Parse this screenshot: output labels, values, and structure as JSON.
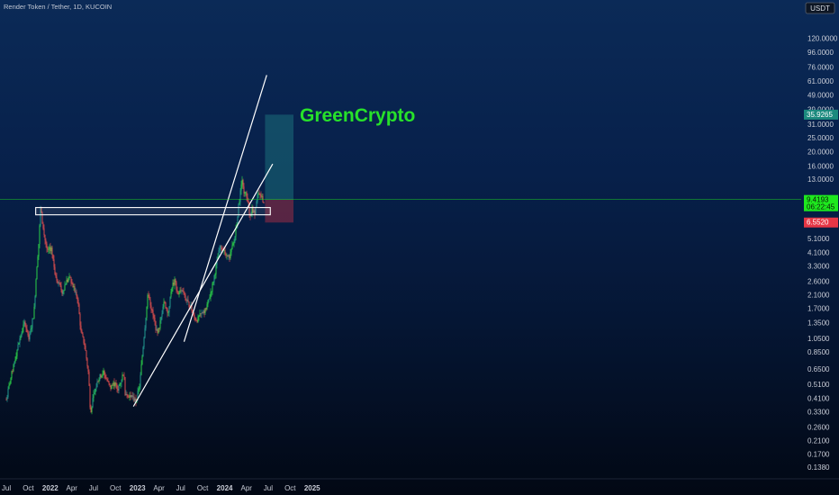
{
  "chart_data": {
    "type": "candlestick",
    "title": "Render Token / Tether, 1D, KUCOIN",
    "currency": "USDT",
    "watermark": "GreenCrypto",
    "y_scale": "log",
    "ylim": [
      0.12,
      165
    ],
    "y_ticks": [
      "120.0000",
      "96.0000",
      "76.0000",
      "61.0000",
      "49.0000",
      "39.0000",
      "31.0000",
      "25.0000",
      "20.0000",
      "16.0000",
      "13.0000",
      "9.4396",
      "5.1000",
      "4.1000",
      "3.3000",
      "2.6000",
      "2.1000",
      "1.7000",
      "1.3500",
      "1.0500",
      "0.8500",
      "0.6500",
      "0.5100",
      "0.4100",
      "0.3300",
      "0.2600",
      "0.2100",
      "0.1700",
      "0.1380"
    ],
    "x_ticks": [
      "Jul",
      "Oct",
      "2022",
      "Apr",
      "Jul",
      "Oct",
      "2023",
      "Apr",
      "Jul",
      "Oct",
      "2024",
      "Apr",
      "Jul",
      "Oct",
      "2025"
    ],
    "bold_x_ticks": [
      "2022",
      "2023",
      "2024",
      "2025"
    ],
    "price_labels": {
      "target": "35.9265",
      "current": "9.4193",
      "countdown": "06:22:45",
      "high_marker": "9.4396",
      "stop": "6.5520"
    },
    "colors": {
      "up": "#26a69a",
      "up_bright": "#2ee34a",
      "down": "#ef5350",
      "profit_zone": "#1f7f86",
      "loss_zone": "#7a2a45",
      "current_price": "#1ee81e",
      "trendline": "#ffffff"
    },
    "price_path": [
      [
        "2021-07-01",
        0.4
      ],
      [
        "2021-07-25",
        0.62
      ],
      [
        "2021-08-20",
        0.95
      ],
      [
        "2021-09-15",
        1.35
      ],
      [
        "2021-10-05",
        1.05
      ],
      [
        "2021-10-25",
        1.6
      ],
      [
        "2021-11-05",
        3.2
      ],
      [
        "2021-11-15",
        5.0
      ],
      [
        "2021-11-21",
        8.3
      ],
      [
        "2021-12-05",
        5.5
      ],
      [
        "2021-12-20",
        4.1
      ],
      [
        "2022-01-05",
        4.4
      ],
      [
        "2022-01-20",
        3.0
      ],
      [
        "2022-02-05",
        2.5
      ],
      [
        "2022-02-20",
        2.2
      ],
      [
        "2022-03-10",
        2.6
      ],
      [
        "2022-03-25",
        2.7
      ],
      [
        "2022-04-10",
        2.3
      ],
      [
        "2022-04-25",
        2.0
      ],
      [
        "2022-05-10",
        1.15
      ],
      [
        "2022-05-25",
        0.95
      ],
      [
        "2022-06-10",
        0.6
      ],
      [
        "2022-06-18",
        0.33
      ],
      [
        "2022-07-01",
        0.42
      ],
      [
        "2022-07-20",
        0.55
      ],
      [
        "2022-08-10",
        0.62
      ],
      [
        "2022-08-25",
        0.55
      ],
      [
        "2022-09-10",
        0.48
      ],
      [
        "2022-09-25",
        0.52
      ],
      [
        "2022-10-10",
        0.47
      ],
      [
        "2022-10-25",
        0.55
      ],
      [
        "2022-11-05",
        0.62
      ],
      [
        "2022-11-10",
        0.45
      ],
      [
        "2022-11-25",
        0.43
      ],
      [
        "2022-12-10",
        0.42
      ],
      [
        "2022-12-25",
        0.39
      ],
      [
        "2023-01-10",
        0.5
      ],
      [
        "2023-01-25",
        0.95
      ],
      [
        "2023-02-05",
        1.5
      ],
      [
        "2023-02-15",
        2.2
      ],
      [
        "2023-03-01",
        1.65
      ],
      [
        "2023-03-15",
        1.35
      ],
      [
        "2023-03-25",
        1.1
      ],
      [
        "2023-04-10",
        1.45
      ],
      [
        "2023-04-20",
        1.9
      ],
      [
        "2023-05-10",
        1.6
      ],
      [
        "2023-05-25",
        2.4
      ],
      [
        "2023-06-05",
        2.6
      ],
      [
        "2023-06-20",
        2.15
      ],
      [
        "2023-07-05",
        2.25
      ],
      [
        "2023-07-25",
        1.9
      ],
      [
        "2023-08-15",
        1.7
      ],
      [
        "2023-08-25",
        1.45
      ],
      [
        "2023-09-10",
        1.42
      ],
      [
        "2023-09-25",
        1.55
      ],
      [
        "2023-10-10",
        1.6
      ],
      [
        "2023-10-25",
        1.9
      ],
      [
        "2023-11-10",
        2.4
      ],
      [
        "2023-11-25",
        3.2
      ],
      [
        "2023-12-10",
        4.3
      ],
      [
        "2023-12-25",
        4.5
      ],
      [
        "2024-01-05",
        3.8
      ],
      [
        "2024-01-15",
        3.7
      ],
      [
        "2024-01-25",
        4.0
      ],
      [
        "2024-02-10",
        4.9
      ],
      [
        "2024-02-20",
        6.5
      ],
      [
        "2024-03-01",
        9.0
      ],
      [
        "2024-03-08",
        11.0
      ],
      [
        "2024-03-14",
        13.5
      ],
      [
        "2024-03-22",
        10.5
      ],
      [
        "2024-04-01",
        10.3
      ],
      [
        "2024-04-10",
        8.5
      ],
      [
        "2024-04-15",
        7.0
      ],
      [
        "2024-04-25",
        8.2
      ],
      [
        "2024-05-05",
        7.5
      ],
      [
        "2024-05-15",
        9.8
      ],
      [
        "2024-05-25",
        10.0
      ],
      [
        "2024-06-05",
        9.8
      ],
      [
        "2024-06-10",
        8.8
      ],
      [
        "2024-06-14",
        9.4193
      ]
    ],
    "annotations": {
      "resistance_zone": {
        "start": "2021-11-01",
        "end": "2024-07-10",
        "low": 7.4,
        "high": 8.3
      },
      "trendline_lower": [
        [
          "2022-12-15",
          0.36
        ],
        [
          "2024-07-20",
          16.5
        ]
      ],
      "trendline_upper": [
        [
          "2023-07-15",
          1.0
        ],
        [
          "2024-06-25",
          67
        ]
      ],
      "position": {
        "start": "2024-06-18",
        "end": "2024-10-15",
        "entry": 9.4193,
        "target": 35.9265,
        "stop": 6.552
      }
    }
  }
}
